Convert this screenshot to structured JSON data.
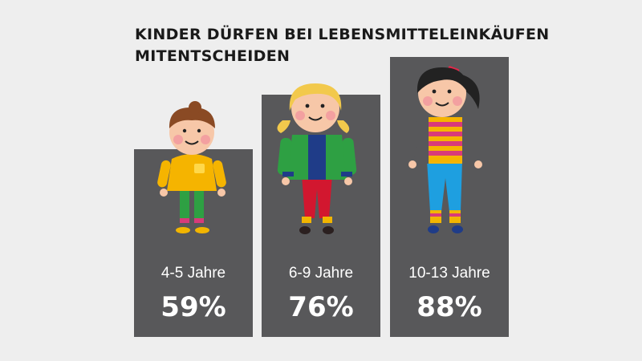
{
  "title_lines": [
    "KINDER DÜRFEN BEI LEBENSMITTELEINKÄUFEN",
    "MITENTSCHEIDEN"
  ],
  "chart_data": {
    "type": "bar",
    "title": "KINDER DÜRFEN BEI LEBENSMITTELEINKÄUFEN MITENTSCHEIDEN",
    "categories": [
      "4-5 Jahre",
      "6-9 Jahre",
      "10-13 Jahre"
    ],
    "values": [
      59,
      76,
      88
    ],
    "value_labels": [
      "59%",
      "76%",
      "88%"
    ],
    "unit": "%",
    "ylim": [
      0,
      100
    ],
    "grid": false,
    "bar_color": "#58585a",
    "label_color": "#ffffff"
  }
}
